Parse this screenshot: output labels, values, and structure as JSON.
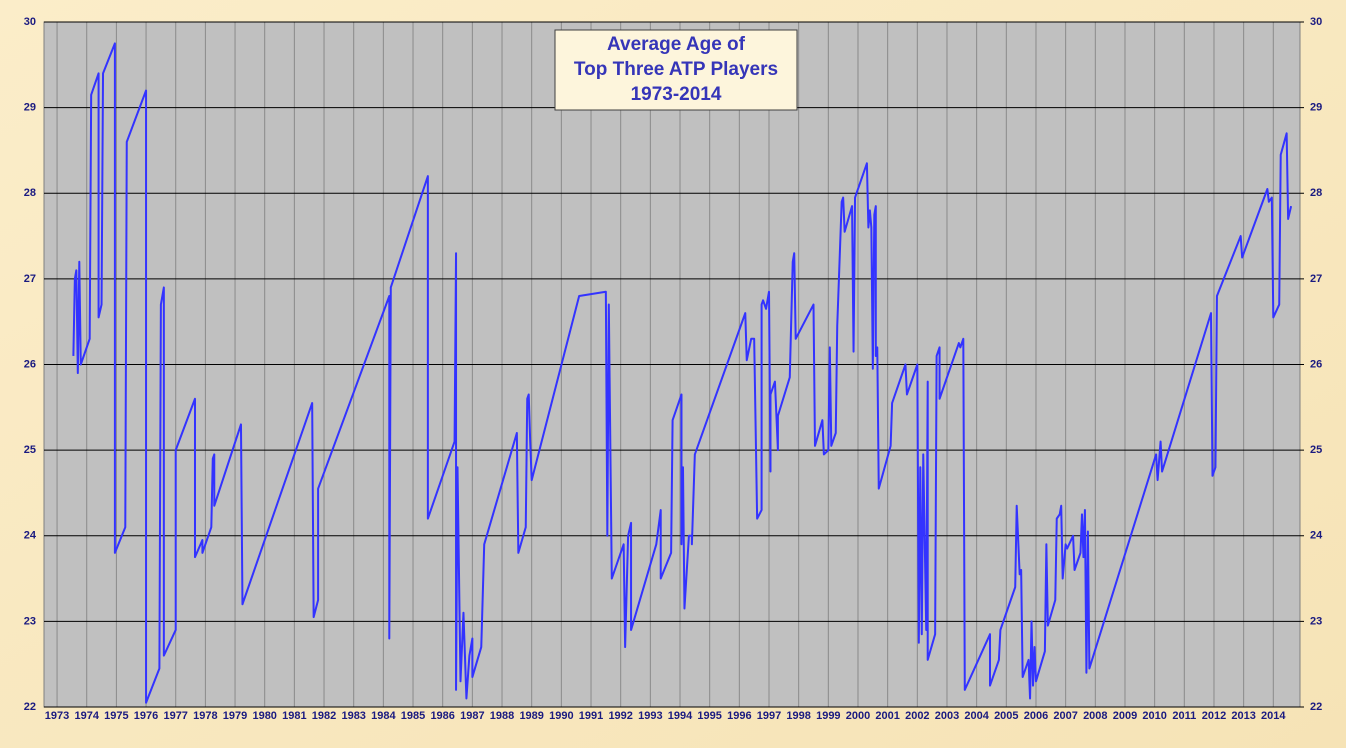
{
  "chart_data": {
    "type": "line",
    "title": [
      "Average Age of",
      "Top Three ATP Players",
      "1973-2014"
    ],
    "color": "#3333ff",
    "grid": true,
    "xlim": [
      1972.56,
      2014.9
    ],
    "ylim": [
      22,
      30
    ],
    "y2lim": [
      22,
      30
    ],
    "xticks": [
      1973,
      1974,
      1975,
      1976,
      1977,
      1978,
      1979,
      1980,
      1981,
      1982,
      1983,
      1984,
      1985,
      1986,
      1987,
      1988,
      1989,
      1990,
      1991,
      1992,
      1993,
      1994,
      1995,
      1996,
      1997,
      1998,
      1999,
      2000,
      2001,
      2002,
      2003,
      2004,
      2005,
      2006,
      2007,
      2008,
      2009,
      2010,
      2011,
      2012,
      2013,
      2014
    ],
    "yticks": [
      22,
      23,
      24,
      25,
      26,
      27,
      28,
      29,
      30
    ],
    "y2ticks": [
      22,
      23,
      24,
      25,
      26,
      27,
      28,
      29,
      30
    ],
    "x": [
      1973.55,
      1973.6,
      1973.65,
      1973.7,
      1973.75,
      1973.8,
      1974.1,
      1974.15,
      1974.4,
      1974.4,
      1974.5,
      1974.55,
      1974.95,
      1974.95,
      1975.3,
      1975.35,
      1976.0,
      1976.0,
      1976.45,
      1976.5,
      1976.6,
      1976.6,
      1977.0,
      1977.0,
      1977.65,
      1977.65,
      1977.9,
      1977.9,
      1978.2,
      1978.25,
      1978.3,
      1978.3,
      1979.2,
      1979.25,
      1981.6,
      1981.65,
      1981.8,
      1981.8,
      1984.2,
      1984.2,
      1984.25,
      1985.5,
      1985.5,
      1986.4,
      1986.45,
      1986.45,
      1986.5,
      1986.6,
      1986.7,
      1986.8,
      1986.9,
      1987.0,
      1987.0,
      1987.3,
      1987.4,
      1988.5,
      1988.55,
      1988.8,
      1988.85,
      1988.9,
      1988.95,
      1989.0,
      1990.6,
      1991.5,
      1991.55,
      1991.6,
      1991.7,
      1992.1,
      1992.15,
      1992.25,
      1992.35,
      1992.35,
      1993.2,
      1993.35,
      1993.35,
      1993.7,
      1993.75,
      1994.05,
      1994.05,
      1994.1,
      1994.15,
      1994.3,
      1994.4,
      1994.4,
      1994.5,
      1996.2,
      1996.25,
      1996.4,
      1996.5,
      1996.6,
      1996.75,
      1996.75,
      1996.8,
      1996.9,
      1997.0,
      1997.05,
      1997.05,
      1997.2,
      1997.3,
      1997.3,
      1997.7,
      1997.8,
      1997.85,
      1997.9,
      1998.5,
      1998.55,
      1998.8,
      1998.85,
      1999.0,
      1999.05,
      1999.1,
      1999.25,
      1999.3,
      1999.45,
      1999.5,
      1999.55,
      1999.8,
      1999.85,
      1999.9,
      2000.3,
      2000.35,
      2000.4,
      2000.45,
      2000.5,
      2000.55,
      2000.6,
      2000.6,
      2000.65,
      2000.7,
      2001.1,
      2001.15,
      2001.6,
      2001.65,
      2002.0,
      2002.05,
      2002.1,
      2002.15,
      2002.2,
      2002.3,
      2002.35,
      2002.35,
      2002.6,
      2002.65,
      2002.75,
      2002.75,
      2003.4,
      2003.45,
      2003.55,
      2003.6,
      2004.45,
      2004.45,
      2004.75,
      2004.8,
      2005.3,
      2005.35,
      2005.45,
      2005.5,
      2005.55,
      2005.75,
      2005.8,
      2005.85,
      2005.9,
      2005.95,
      2006.0,
      2006.3,
      2006.35,
      2006.4,
      2006.65,
      2006.7,
      2006.8,
      2006.85,
      2006.9,
      2007.0,
      2007.05,
      2007.25,
      2007.3,
      2007.5,
      2007.55,
      2007.6,
      2007.65,
      2007.7,
      2007.75,
      2007.8,
      2010.05,
      2010.1,
      2010.2,
      2010.25,
      2011.9,
      2011.95,
      2012.05,
      2012.1,
      2012.9,
      2012.95,
      2013.8,
      2013.85,
      2013.95,
      2014.0,
      2014.2,
      2014.25,
      2014.45,
      2014.5,
      2014.6
    ],
    "values": [
      26.1,
      27.0,
      27.1,
      25.9,
      27.2,
      26.0,
      26.3,
      29.15,
      29.4,
      26.55,
      26.7,
      29.4,
      29.75,
      23.8,
      24.1,
      28.6,
      29.2,
      22.05,
      22.45,
      26.7,
      26.9,
      22.6,
      22.9,
      25.0,
      25.6,
      23.75,
      23.95,
      23.8,
      24.1,
      24.9,
      24.95,
      24.35,
      25.3,
      23.2,
      25.55,
      23.05,
      23.25,
      24.55,
      26.8,
      22.8,
      26.9,
      28.2,
      24.2,
      25.1,
      27.3,
      22.2,
      24.8,
      22.3,
      23.1,
      22.1,
      22.6,
      22.8,
      22.35,
      22.7,
      23.9,
      25.2,
      23.8,
      24.1,
      25.6,
      25.65,
      25.1,
      24.65,
      26.8,
      26.85,
      24.0,
      26.7,
      23.5,
      23.9,
      22.7,
      24.0,
      24.15,
      22.9,
      23.9,
      24.3,
      23.5,
      23.8,
      25.35,
      25.65,
      23.9,
      24.8,
      23.15,
      24.0,
      24.0,
      23.9,
      24.95,
      26.6,
      26.05,
      26.3,
      26.3,
      24.2,
      24.3,
      26.7,
      26.75,
      26.65,
      26.85,
      24.75,
      25.65,
      25.8,
      25.0,
      25.4,
      25.85,
      27.2,
      27.3,
      26.3,
      26.7,
      25.05,
      25.35,
      24.95,
      25.0,
      26.2,
      25.05,
      25.2,
      26.45,
      27.9,
      27.95,
      27.55,
      27.85,
      26.15,
      27.95,
      28.35,
      27.6,
      27.8,
      27.6,
      25.95,
      27.75,
      27.85,
      26.1,
      26.2,
      24.55,
      25.05,
      25.55,
      26.0,
      25.65,
      26.0,
      22.75,
      24.8,
      22.85,
      24.95,
      22.9,
      25.8,
      22.55,
      22.85,
      26.1,
      26.2,
      25.6,
      26.25,
      26.2,
      26.3,
      22.2,
      22.85,
      22.25,
      22.55,
      22.9,
      23.4,
      24.35,
      23.55,
      23.6,
      22.35,
      22.55,
      22.1,
      23.0,
      22.25,
      22.7,
      22.3,
      22.65,
      23.9,
      22.95,
      23.25,
      24.2,
      24.25,
      24.35,
      23.5,
      23.9,
      23.85,
      24.0,
      23.6,
      23.8,
      24.25,
      23.75,
      24.3,
      22.4,
      24.05,
      22.45,
      24.95,
      24.65,
      25.1,
      24.75,
      26.6,
      24.7,
      24.8,
      26.8,
      27.5,
      27.25,
      28.05,
      27.9,
      27.95,
      26.55,
      26.7,
      28.45,
      28.7,
      27.7,
      27.85
    ]
  }
}
